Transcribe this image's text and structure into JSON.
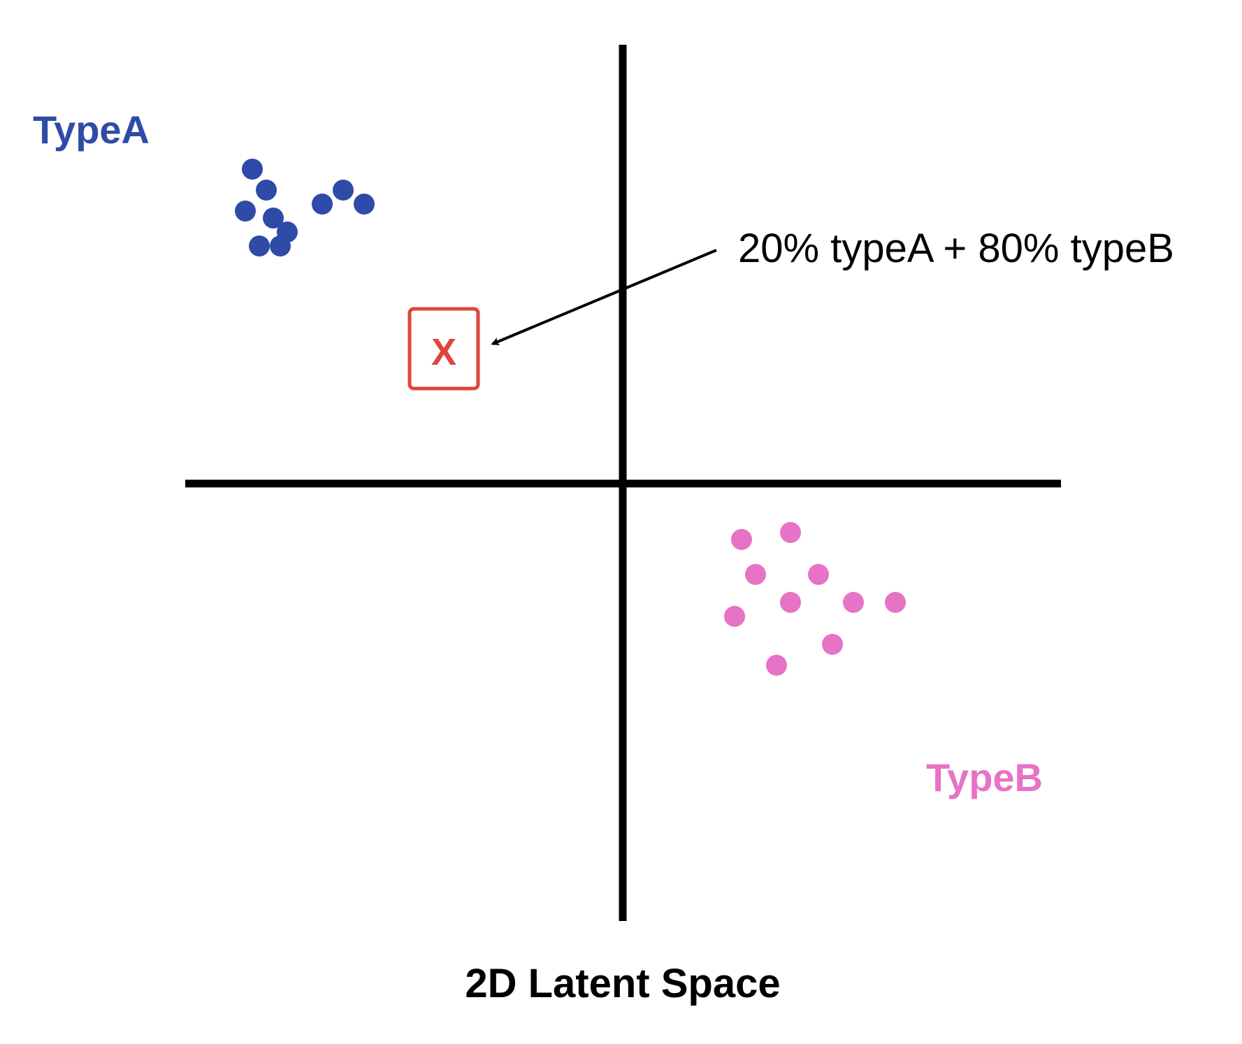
{
  "caption": "2D Latent Space",
  "annotation": "20% typeA + 80% typeB",
  "marker_label": "X",
  "clusters": [
    {
      "name": "TypeA",
      "color": "#2e4ba8",
      "points": [
        [
          -5.3,
          4.5
        ],
        [
          -5.1,
          4.2
        ],
        [
          -5.4,
          3.9
        ],
        [
          -5.2,
          3.4
        ],
        [
          -4.9,
          3.4
        ],
        [
          -5.0,
          3.8
        ],
        [
          -4.8,
          3.6
        ],
        [
          -4.3,
          4.0
        ],
        [
          -3.7,
          4.0
        ],
        [
          -4.0,
          4.2
        ]
      ]
    },
    {
      "name": "TypeB",
      "color": "#e673c5",
      "points": [
        [
          1.7,
          -0.8
        ],
        [
          1.9,
          -1.3
        ],
        [
          1.6,
          -1.9
        ],
        [
          2.4,
          -1.7
        ],
        [
          2.4,
          -0.7
        ],
        [
          2.8,
          -1.3
        ],
        [
          3.3,
          -1.7
        ],
        [
          3.0,
          -2.3
        ],
        [
          2.2,
          -2.6
        ],
        [
          3.9,
          -1.7
        ]
      ]
    }
  ],
  "marker": {
    "color": "#e0453e",
    "position": [
      -2.3,
      1.5
    ]
  },
  "axis_color": "#000000"
}
